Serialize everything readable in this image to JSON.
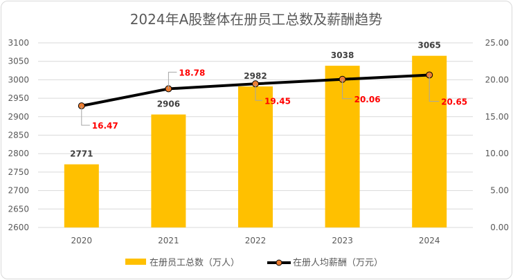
{
  "chart_data": {
    "type": "bar+line",
    "title": "2024年A股整体在册员工总数及薪酬趋势",
    "categories": [
      "2020",
      "2021",
      "2022",
      "2023",
      "2024"
    ],
    "series": [
      {
        "name": "在册员工总数（万人）",
        "type": "bar",
        "axis": "left",
        "values": [
          2771,
          2906,
          2982,
          3038,
          3065
        ],
        "color": "#FFC000",
        "labels": [
          "2771",
          "2906",
          "2982",
          "3038",
          "3065"
        ]
      },
      {
        "name": "在册人均薪酬（万元）",
        "type": "line",
        "axis": "right",
        "values": [
          16.47,
          18.78,
          19.45,
          20.06,
          20.65
        ],
        "color": "#000000",
        "marker_color": "#ED7D31",
        "label_color": "#FF0000",
        "labels": [
          "16.47",
          "18.78",
          "19.45",
          "20.06",
          "20.65"
        ]
      }
    ],
    "y_left": {
      "range": [
        2600,
        3100
      ],
      "ticks": [
        "2600",
        "2650",
        "2700",
        "2750",
        "2800",
        "2850",
        "2900",
        "2950",
        "3000",
        "3050",
        "3100"
      ]
    },
    "y_right": {
      "range": [
        0,
        25
      ],
      "ticks": [
        "0.00",
        "5.00",
        "10.00",
        "15.00",
        "20.00",
        "25.00"
      ]
    },
    "grid": true,
    "legend": "bottom"
  }
}
